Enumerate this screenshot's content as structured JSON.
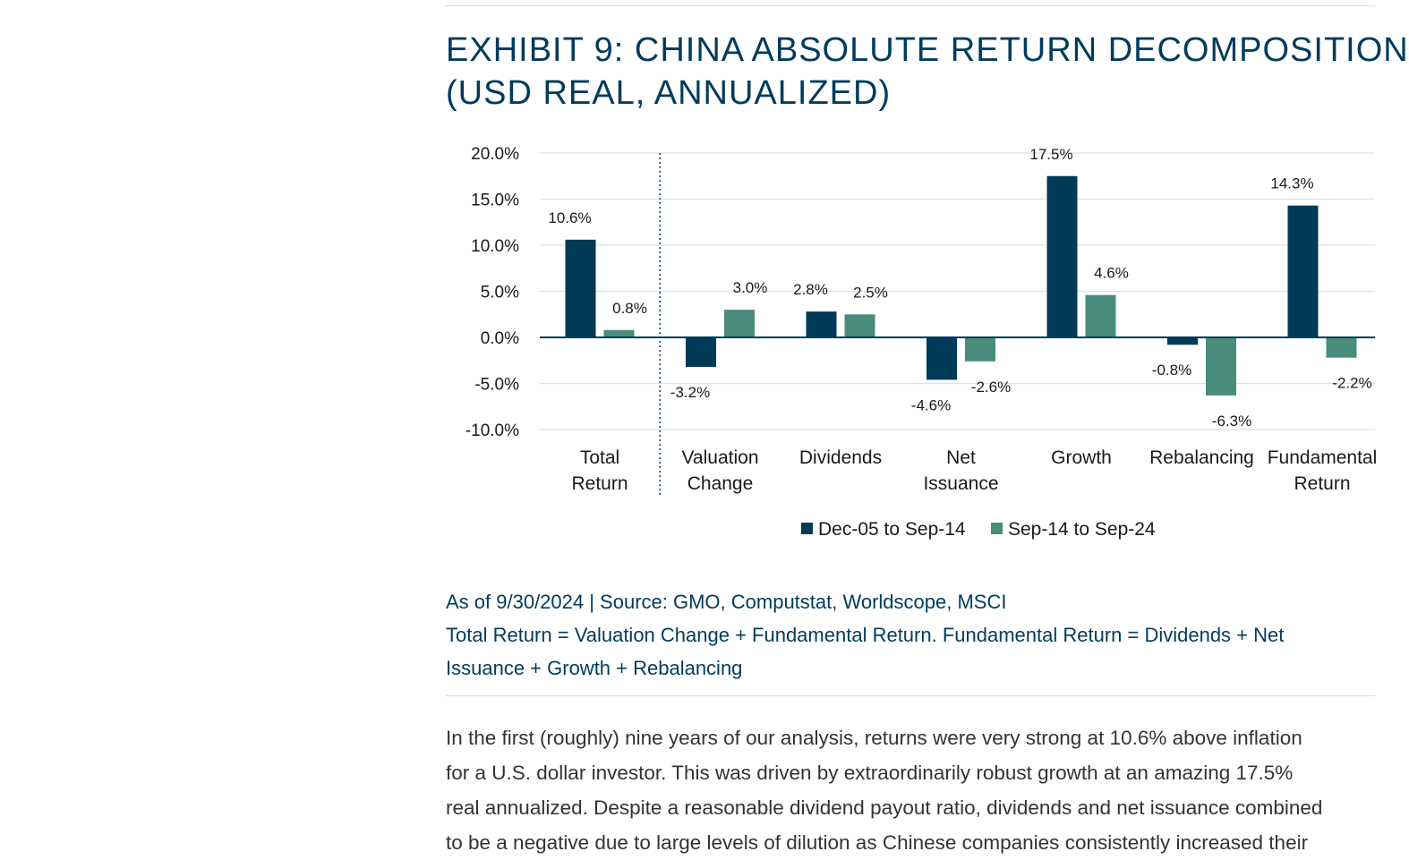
{
  "exhibit": {
    "title_line1": "EXHIBIT 9: CHINA ABSOLUTE RETURN DECOMPOSITION",
    "title_line2": "(USD REAL, ANNUALIZED)"
  },
  "chart_data": {
    "type": "bar",
    "categories": [
      [
        "Total",
        "Return"
      ],
      [
        "Valuation",
        "Change"
      ],
      [
        "Dividends"
      ],
      [
        "Net",
        "Issuance"
      ],
      [
        "Growth"
      ],
      [
        "Rebalancing"
      ],
      [
        "Fundamental",
        "Return"
      ]
    ],
    "series": [
      {
        "name": "Dec-05 to Sep-14",
        "color": "#003a56",
        "values": [
          10.6,
          -3.2,
          2.8,
          -4.6,
          17.5,
          -0.8,
          14.3
        ],
        "labels": [
          "10.6%",
          "-3.2%",
          "2.8%",
          "-4.6%",
          "17.5%",
          "-0.8%",
          "14.3%"
        ]
      },
      {
        "name": "Sep-14 to Sep-24",
        "color": "#4a8c7c",
        "values": [
          0.8,
          3.0,
          2.5,
          -2.6,
          4.6,
          -6.3,
          -2.2
        ],
        "labels": [
          "0.8%",
          "3.0%",
          "2.5%",
          "-2.6%",
          "4.6%",
          "-6.3%",
          "-2.2%"
        ]
      }
    ],
    "y_ticks": [
      20,
      15,
      10,
      5,
      0,
      -5,
      -10
    ],
    "y_tick_labels": [
      "20.0%",
      "15.0%",
      "10.0%",
      "5.0%",
      "0.0%",
      "-5.0%",
      "-10.0%"
    ],
    "ylim": [
      -10,
      20
    ],
    "grid": true,
    "legend_position": "bottom",
    "divider_after_category": 0
  },
  "footnote": {
    "source": "As of 9/30/2024 | Source: GMO, Computstat, Worldscope, MSCI",
    "definition_line1": "Total Return = Valuation Change + Fundamental Return. Fundamental Return = Dividends + Net",
    "definition_line2": "Issuance + Growth + Rebalancing"
  },
  "body": {
    "lines": [
      "In the first (roughly) nine years of our analysis, returns were very strong at 10.6% above inflation",
      "for a U.S. dollar investor. This was driven by extraordinarily robust growth at an amazing 17.5%",
      "real annualized. Despite a reasonable dividend payout ratio, dividends and net issuance combined",
      "to be a negative due to large levels of dilution as Chinese companies consistently increased their"
    ]
  }
}
